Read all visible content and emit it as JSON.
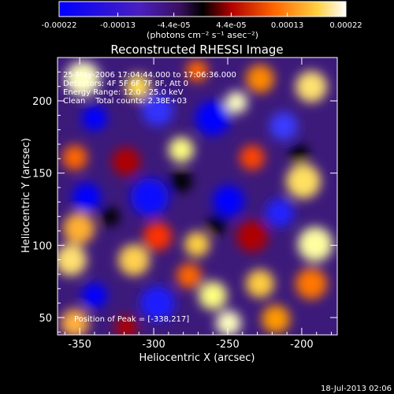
{
  "colorbar": {
    "tick_labels": [
      "-0.00022",
      "-0.00013",
      "-4.4e-05",
      "4.4e-05",
      "0.00013",
      "0.00022"
    ],
    "unit_label": "(photons cm⁻² s⁻¹ asec⁻²)",
    "range": [
      -0.00022,
      0.00022
    ]
  },
  "plot": {
    "title": "Reconstructed RHESSI Image",
    "info_lines": [
      "25-May-2006 17:04:44.000 to 17:06:36.000",
      "Detectors: 4F 5F 6F 7F 8F, Att 0",
      "Energy Range: 12.0 - 25.0 keV",
      "Clean    Total counts: 2.38E+03"
    ],
    "peak_label": "Position of Peak = [-338,217]",
    "xlabel": "Heliocentric X (arcsec)",
    "ylabel": "Heliocentric Y (arcsec)",
    "xticks": [
      "-350",
      "-300",
      "-250",
      "-200"
    ],
    "yticks": [
      "50",
      "100",
      "150",
      "200"
    ],
    "xrange": [
      -365,
      -176
    ],
    "yrange": [
      38,
      230
    ]
  },
  "footer": {
    "timestamp": "18-Jul-2013 02:06"
  },
  "colors": {
    "background": "#000000",
    "cmap": [
      "#0000ff",
      "#5a2aa0",
      "#000000",
      "#cc0000",
      "#ff7f00",
      "#ffff80",
      "#ffffff"
    ]
  }
}
